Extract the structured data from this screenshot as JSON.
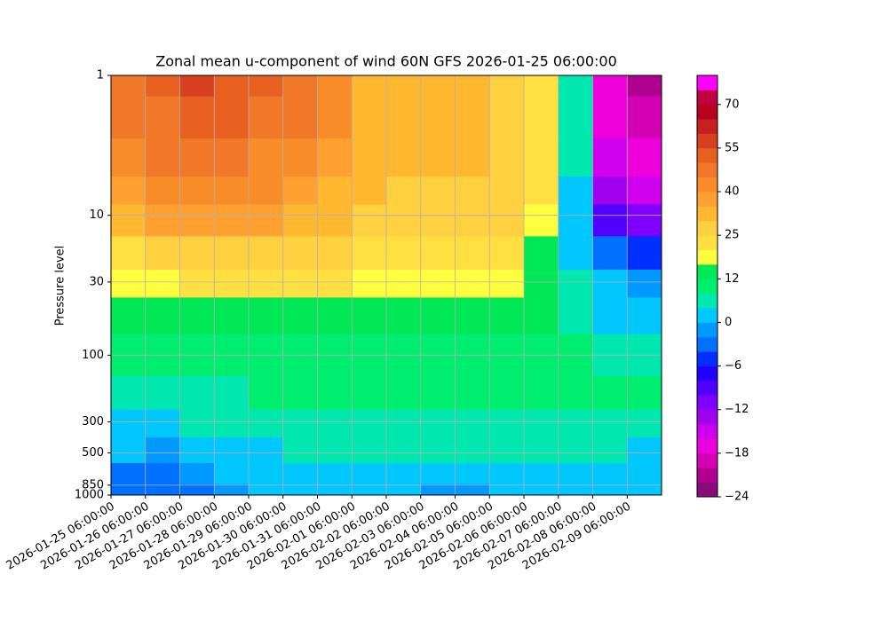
{
  "chart_data": {
    "type": "contourf",
    "title": "Zonal mean u-component of wind 60N GFS 2026-01-25 06:00:00",
    "ylabel": "Pressure level",
    "y_scale": "log",
    "grid": true,
    "xlim": [
      "2026-01-25 06:00:00",
      "2026-02-10 06:00:00"
    ],
    "xticks": [
      "2026-01-25 06:00:00",
      "2026-01-26 06:00:00",
      "2026-01-27 06:00:00",
      "2026-01-28 06:00:00",
      "2026-01-29 06:00:00",
      "2026-01-30 06:00:00",
      "2026-01-31 06:00:00",
      "2026-02-01 06:00:00",
      "2026-02-02 06:00:00",
      "2026-02-03 06:00:00",
      "2026-02-04 06:00:00",
      "2026-02-05 06:00:00",
      "2026-02-06 06:00:00",
      "2026-02-07 06:00:00",
      "2026-02-08 06:00:00",
      "2026-02-09 06:00:00"
    ],
    "ylim": [
      1000,
      1
    ],
    "yticks": [
      1,
      10,
      30,
      100,
      300,
      500,
      850,
      1000
    ],
    "x": [
      "2026-01-25 06:00:00",
      "2026-01-26 06:00:00",
      "2026-01-27 06:00:00",
      "2026-01-28 06:00:00",
      "2026-01-29 06:00:00",
      "2026-01-30 06:00:00",
      "2026-01-31 06:00:00",
      "2026-02-01 06:00:00",
      "2026-02-02 06:00:00",
      "2026-02-03 06:00:00",
      "2026-02-04 06:00:00",
      "2026-02-05 06:00:00",
      "2026-02-06 06:00:00",
      "2026-02-07 06:00:00",
      "2026-02-08 06:00:00",
      "2026-02-09 06:00:00"
    ],
    "y": [
      1,
      2,
      4,
      7,
      10,
      20,
      30,
      50,
      100,
      200,
      300,
      500,
      700,
      1000
    ],
    "z": [
      [
        45,
        50,
        55,
        52,
        50,
        48,
        42,
        33,
        30,
        32,
        33,
        28,
        24,
        5,
        -18,
        -22
      ],
      [
        45,
        48,
        52,
        50,
        48,
        45,
        40,
        33,
        30,
        32,
        33,
        28,
        24,
        5,
        -18,
        -20
      ],
      [
        42,
        45,
        48,
        46,
        44,
        42,
        38,
        32,
        30,
        30,
        30,
        27,
        24,
        4,
        -16,
        -18
      ],
      [
        38,
        40,
        42,
        42,
        40,
        38,
        34,
        30,
        28,
        28,
        28,
        26,
        22,
        2,
        -14,
        -16
      ],
      [
        34,
        35,
        36,
        36,
        35,
        33,
        30,
        28,
        27,
        27,
        27,
        25,
        18,
        0,
        -10,
        -12
      ],
      [
        24,
        25,
        27,
        28,
        27,
        26,
        25,
        24,
        24,
        24,
        24,
        22,
        14,
        2,
        -4,
        -6
      ],
      [
        19,
        19,
        20,
        21,
        21,
        20,
        20,
        19,
        19,
        19,
        19,
        18,
        12,
        4,
        0,
        -2
      ],
      [
        14,
        14,
        15,
        15,
        15,
        15,
        15,
        15,
        15,
        15,
        15,
        14,
        12,
        7,
        3,
        2
      ],
      [
        10,
        10,
        10,
        11,
        11,
        11,
        11,
        11,
        11,
        11,
        11,
        11,
        10,
        8,
        6,
        6
      ],
      [
        7,
        7,
        6,
        7,
        8,
        8,
        8,
        8,
        8,
        8,
        8,
        8,
        8,
        8,
        8,
        8
      ],
      [
        3,
        3,
        4,
        4,
        5,
        6,
        6,
        6,
        6,
        6,
        6,
        6,
        6,
        7,
        6,
        6
      ],
      [
        0,
        -1,
        1,
        2,
        3,
        4,
        4,
        4,
        5,
        4,
        4,
        4,
        5,
        4,
        4,
        3
      ],
      [
        -3,
        -3,
        -2,
        0,
        2,
        2,
        2,
        2,
        3,
        2,
        2,
        2,
        2,
        3,
        2,
        1
      ],
      [
        -4,
        -4,
        -3,
        -1,
        0,
        1,
        0,
        1,
        0,
        -1,
        -1,
        1,
        0,
        1,
        0,
        0
      ]
    ],
    "levels": [
      -24,
      -22,
      -20,
      -18,
      -16,
      -14,
      -12,
      -10,
      -8,
      -6,
      -4,
      -2,
      0,
      4,
      8,
      12,
      16,
      20,
      25,
      30,
      35,
      40,
      45,
      50,
      55,
      60,
      65,
      70,
      75,
      80
    ],
    "colors": [
      "#8b0a7a",
      "#b0008f",
      "#d400b4",
      "#ee00dd",
      "#d000ee",
      "#a000ee",
      "#8000ff",
      "#5000ff",
      "#2000ff",
      "#0030ff",
      "#0070ff",
      "#0099ff",
      "#00c8ff",
      "#00e8b0",
      "#00ee70",
      "#00e855",
      "#ffff40",
      "#ffe040",
      "#ffd040",
      "#ffb830",
      "#ffa030",
      "#f88c28",
      "#f07828",
      "#e86020",
      "#d84020",
      "#c82020",
      "#b80020",
      "#c00040",
      "#ff00ff"
    ],
    "colorbar_ticks": [
      {
        "value": -24,
        "label": "−24"
      },
      {
        "value": -18,
        "label": "−18"
      },
      {
        "value": -12,
        "label": "−12"
      },
      {
        "value": -6,
        "label": "−6"
      },
      0,
      12,
      25,
      40,
      55,
      70
    ]
  }
}
